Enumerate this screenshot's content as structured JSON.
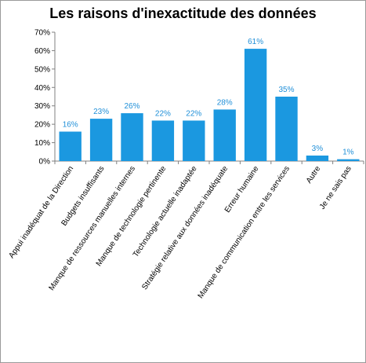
{
  "chart_data": {
    "type": "bar",
    "title": "Les raisons d'inexactitude des données",
    "xlabel": "",
    "ylabel": "",
    "ylim": [
      0,
      70
    ],
    "yticks": [
      "0%",
      "10%",
      "20%",
      "30%",
      "40%",
      "50%",
      "60%",
      "70%"
    ],
    "categories": [
      "Appui inadéquat de la Direction",
      "Budgets insuffisants",
      "Manque de ressources manuelles internes",
      "Manque de technologie pertinente",
      "Technologie actuelle inadaptée",
      "Stratégie relative aux données inadéquate",
      "Erreur humaine",
      "Manque de communication entre les services",
      "Autre",
      "Je ne sais pas"
    ],
    "values": [
      16,
      23,
      26,
      22,
      22,
      28,
      61,
      35,
      3,
      1
    ],
    "value_labels": [
      "16%",
      "23%",
      "26%",
      "22%",
      "22%",
      "28%",
      "61%",
      "35%",
      "3%",
      "1%"
    ],
    "bar_color": "#1b98e0",
    "label_color": "#1f8fd8",
    "grid": false,
    "legend": "none"
  }
}
